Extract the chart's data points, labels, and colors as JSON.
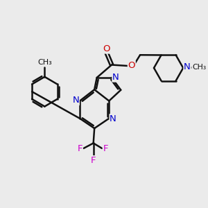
{
  "bg": "#ebebeb",
  "bc": "#111111",
  "nc": "#0000cc",
  "oc": "#cc0000",
  "fc": "#cc00cc",
  "lw": 1.8,
  "dpi": 100,
  "xlim": [
    0,
    10
  ],
  "ylim": [
    0,
    10
  ],
  "figsize": [
    3.0,
    3.0
  ]
}
